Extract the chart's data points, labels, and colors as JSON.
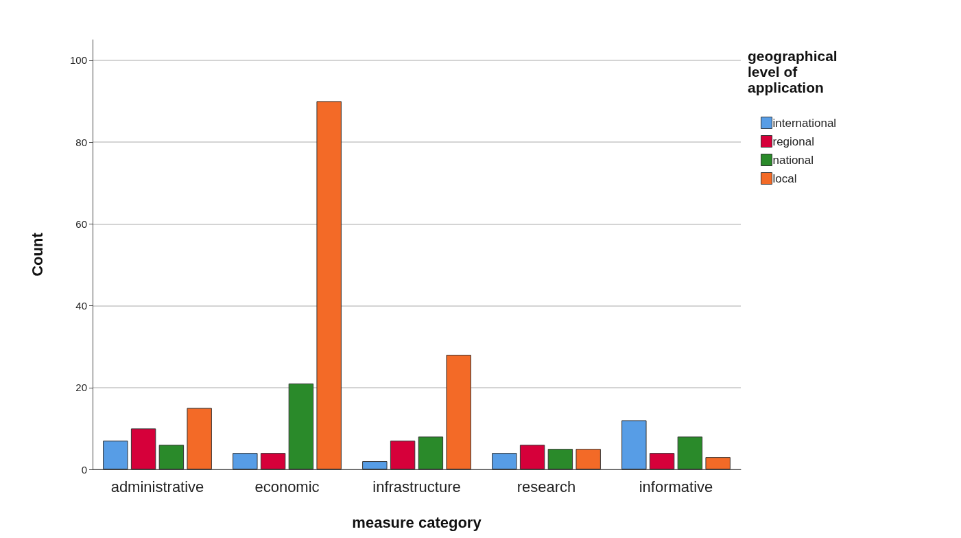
{
  "chart_data": {
    "type": "bar",
    "xlabel": "measure category",
    "ylabel": "Count",
    "legend_title": "geographical level of application",
    "categories": [
      "administrative",
      "economic",
      "infrastructure",
      "research",
      "informative"
    ],
    "series": [
      {
        "name": "international",
        "color": "#579de6",
        "values": [
          7,
          4,
          2,
          4,
          12
        ]
      },
      {
        "name": "regional",
        "color": "#d6003a",
        "values": [
          10,
          4,
          7,
          6,
          4
        ]
      },
      {
        "name": "national",
        "color": "#2a8a2a",
        "values": [
          6,
          21,
          8,
          5,
          8
        ]
      },
      {
        "name": "local",
        "color": "#f36a27",
        "values": [
          15,
          90,
          28,
          5,
          3
        ]
      }
    ],
    "ylim": [
      0,
      105
    ],
    "yticks": [
      0,
      20,
      40,
      60,
      80,
      100
    ],
    "grid": "y",
    "legend": "top right"
  }
}
